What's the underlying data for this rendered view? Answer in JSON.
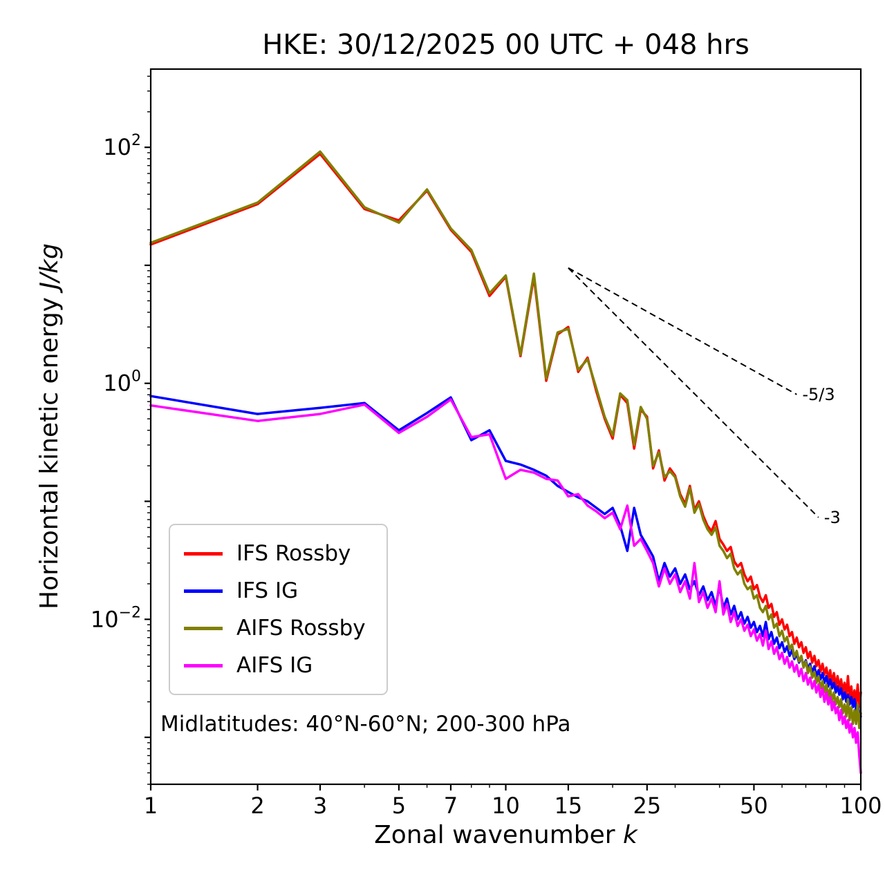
{
  "title": "HKE: 30/12/2025 00 UTC + 048 hrs",
  "xlabel": {
    "text": "Zonal wavenumber ",
    "math": "k"
  },
  "ylabel": {
    "text": "Horizontal kinetic energy ",
    "math": "J/kg"
  },
  "annotation": "Midlatitudes: 40°N-60°N; 200-300 hPa",
  "chart_data": {
    "type": "line",
    "x_scale": "log",
    "y_scale": "log",
    "xlim": [
      1,
      100
    ],
    "ylim": [
      0.0004,
      460
    ],
    "grid": false,
    "legend_position": "lower left",
    "xticks": [
      1,
      2,
      3,
      5,
      7,
      10,
      15,
      25,
      50,
      100
    ],
    "x_minor_ticks": [
      4,
      6,
      8,
      9,
      20,
      30,
      40,
      60,
      70,
      80,
      90
    ],
    "y_major_exponents": [
      2,
      1,
      0,
      -1,
      -2,
      -3
    ],
    "y_labeled_exponents": [
      2,
      0,
      -2
    ],
    "k": [
      1,
      2,
      3,
      4,
      5,
      6,
      7,
      8,
      9,
      10,
      11,
      12,
      13,
      14,
      15,
      16,
      17,
      18,
      19,
      20,
      21,
      22,
      23,
      24,
      25,
      26,
      27,
      28,
      29,
      30,
      31,
      32,
      33,
      34,
      35,
      36,
      37,
      38,
      39,
      40,
      41,
      42,
      43,
      44,
      45,
      46,
      47,
      48,
      49,
      50,
      51,
      52,
      53,
      54,
      55,
      56,
      57,
      58,
      59,
      60,
      61,
      62,
      63,
      64,
      65,
      66,
      67,
      68,
      69,
      70,
      71,
      72,
      73,
      74,
      75,
      76,
      77,
      78,
      79,
      80,
      81,
      82,
      83,
      84,
      85,
      86,
      87,
      88,
      89,
      90,
      91,
      92,
      93,
      94,
      95,
      96,
      97,
      98,
      99,
      100
    ],
    "series": [
      {
        "name": "IFS Rossby",
        "color": "#ff0000",
        "values": [
          15,
          33,
          88,
          30,
          24,
          43,
          20,
          13,
          5.5,
          8.0,
          1.7,
          8.0,
          1.05,
          2.6,
          3.0,
          1.25,
          1.65,
          0.85,
          0.5,
          0.34,
          0.8,
          0.68,
          0.28,
          0.6,
          0.52,
          0.19,
          0.27,
          0.15,
          0.19,
          0.165,
          0.115,
          0.095,
          0.135,
          0.085,
          0.1,
          0.075,
          0.062,
          0.056,
          0.068,
          0.048,
          0.043,
          0.038,
          0.041,
          0.031,
          0.028,
          0.03,
          0.024,
          0.021,
          0.023,
          0.018,
          0.0195,
          0.0155,
          0.014,
          0.016,
          0.0125,
          0.0135,
          0.0105,
          0.0115,
          0.009,
          0.01,
          0.0082,
          0.009,
          0.0072,
          0.0078,
          0.0062,
          0.007,
          0.0058,
          0.0064,
          0.0052,
          0.0058,
          0.0047,
          0.0053,
          0.0043,
          0.0049,
          0.004,
          0.0045,
          0.0036,
          0.0042,
          0.0034,
          0.0039,
          0.0031,
          0.0037,
          0.0029,
          0.0035,
          0.0027,
          0.0033,
          0.0026,
          0.0031,
          0.0024,
          0.0029,
          0.0023,
          0.0033,
          0.0021,
          0.0027,
          0.002,
          0.0025,
          0.0019,
          0.0028,
          0.0018,
          0.0024
        ]
      },
      {
        "name": "IFS IG",
        "color": "#0000ff",
        "values": [
          0.78,
          0.55,
          0.62,
          0.68,
          0.4,
          0.56,
          0.76,
          0.33,
          0.4,
          0.22,
          0.205,
          0.185,
          0.165,
          0.135,
          0.12,
          0.108,
          0.1,
          0.088,
          0.078,
          0.088,
          0.062,
          0.038,
          0.088,
          0.052,
          0.042,
          0.034,
          0.021,
          0.03,
          0.023,
          0.027,
          0.02,
          0.024,
          0.018,
          0.021,
          0.016,
          0.019,
          0.0145,
          0.017,
          0.013,
          0.019,
          0.0125,
          0.015,
          0.011,
          0.013,
          0.01,
          0.0115,
          0.0092,
          0.0105,
          0.0085,
          0.0095,
          0.0078,
          0.0088,
          0.0072,
          0.0095,
          0.0068,
          0.0078,
          0.0062,
          0.007,
          0.0057,
          0.0064,
          0.0053,
          0.0059,
          0.0049,
          0.0055,
          0.0046,
          0.0051,
          0.0043,
          0.0048,
          0.004,
          0.0045,
          0.0038,
          0.0042,
          0.0035,
          0.004,
          0.0033,
          0.0037,
          0.0031,
          0.0035,
          0.0029,
          0.0033,
          0.0027,
          0.0031,
          0.0026,
          0.0029,
          0.0024,
          0.0027,
          0.0023,
          0.0026,
          0.0021,
          0.0024,
          0.002,
          0.0023,
          0.0019,
          0.0022,
          0.0018,
          0.0021,
          0.0017,
          0.0019,
          0.0016,
          0.0015
        ]
      },
      {
        "name": "AIFS Rossby",
        "color": "#808000",
        "values": [
          15.5,
          34,
          92,
          31,
          23,
          44,
          20.5,
          13.5,
          5.8,
          8.2,
          1.75,
          8.5,
          1.1,
          2.7,
          2.9,
          1.3,
          1.6,
          0.9,
          0.52,
          0.36,
          0.82,
          0.72,
          0.3,
          0.63,
          0.5,
          0.2,
          0.26,
          0.16,
          0.18,
          0.16,
          0.11,
          0.09,
          0.13,
          0.08,
          0.095,
          0.07,
          0.058,
          0.052,
          0.06,
          0.042,
          0.038,
          0.033,
          0.036,
          0.027,
          0.024,
          0.026,
          0.02,
          0.018,
          0.019,
          0.015,
          0.016,
          0.0125,
          0.0115,
          0.013,
          0.01,
          0.011,
          0.0085,
          0.0092,
          0.0072,
          0.008,
          0.0065,
          0.0071,
          0.0056,
          0.0061,
          0.0048,
          0.0054,
          0.0044,
          0.0049,
          0.0039,
          0.0044,
          0.0035,
          0.004,
          0.0032,
          0.0036,
          0.0029,
          0.0033,
          0.0026,
          0.003,
          0.0024,
          0.0028,
          0.0022,
          0.0026,
          0.002,
          0.0024,
          0.0019,
          0.0022,
          0.0018,
          0.0021,
          0.0016,
          0.0019,
          0.0015,
          0.0021,
          0.0014,
          0.0018,
          0.0013,
          0.0017,
          0.0013,
          0.0019,
          0.0012,
          0.0016
        ]
      },
      {
        "name": "AIFS IG",
        "color": "#ff00ff",
        "values": [
          0.65,
          0.48,
          0.55,
          0.66,
          0.38,
          0.52,
          0.73,
          0.35,
          0.37,
          0.155,
          0.185,
          0.175,
          0.155,
          0.15,
          0.11,
          0.115,
          0.092,
          0.082,
          0.072,
          0.08,
          0.058,
          0.092,
          0.042,
          0.048,
          0.038,
          0.03,
          0.019,
          0.027,
          0.02,
          0.024,
          0.017,
          0.021,
          0.015,
          0.03,
          0.014,
          0.017,
          0.0125,
          0.015,
          0.0115,
          0.021,
          0.011,
          0.0135,
          0.0095,
          0.0115,
          0.0088,
          0.01,
          0.008,
          0.009,
          0.0072,
          0.0082,
          0.0066,
          0.0075,
          0.006,
          0.008,
          0.0056,
          0.0065,
          0.0051,
          0.0058,
          0.0046,
          0.0052,
          0.0042,
          0.0048,
          0.0039,
          0.0044,
          0.0036,
          0.0041,
          0.0033,
          0.0038,
          0.003,
          0.0035,
          0.0028,
          0.0032,
          0.0026,
          0.003,
          0.0024,
          0.0028,
          0.0022,
          0.0026,
          0.002,
          0.0024,
          0.0019,
          0.0022,
          0.0017,
          0.002,
          0.0016,
          0.0018,
          0.0014,
          0.0017,
          0.0013,
          0.0015,
          0.0012,
          0.0014,
          0.0011,
          0.0013,
          0.001,
          0.0012,
          0.0009,
          0.0011,
          0.0007,
          0.0005
        ]
      }
    ],
    "reference_lines": [
      {
        "label": "-5/3",
        "slope": -1.6667,
        "x_start": 15,
        "x_end": 66,
        "y_start": 9.5
      },
      {
        "label": "-3",
        "slope": -3,
        "x_start": 15,
        "x_end": 76,
        "y_start": 9.5
      }
    ]
  }
}
